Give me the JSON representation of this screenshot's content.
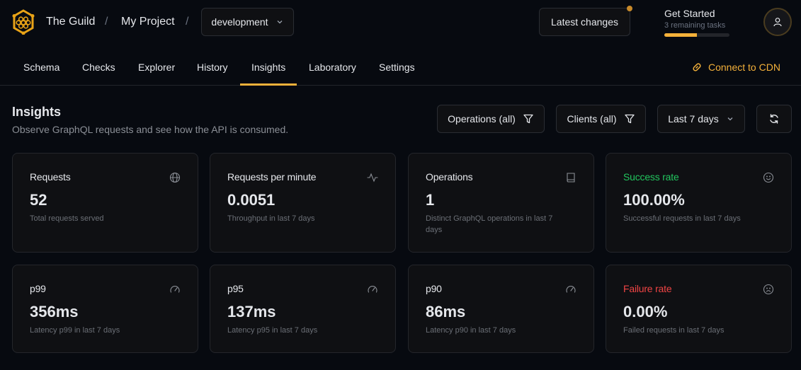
{
  "header": {
    "org": "The Guild",
    "project": "My Project",
    "target": "development",
    "latest_changes": "Latest changes",
    "get_started": {
      "title": "Get Started",
      "subtitle": "3 remaining tasks",
      "progress": 0.5
    }
  },
  "tabs": [
    {
      "label": "Schema"
    },
    {
      "label": "Checks"
    },
    {
      "label": "Explorer"
    },
    {
      "label": "History"
    },
    {
      "label": "Insights",
      "active": true
    },
    {
      "label": "Laboratory"
    },
    {
      "label": "Settings"
    }
  ],
  "cdn": "Connect to CDN",
  "page": {
    "title": "Insights",
    "subtitle": "Observe GraphQL requests and see how the API is consumed."
  },
  "filters": {
    "operations": "Operations (all)",
    "clients": "Clients (all)",
    "range": "Last 7 days"
  },
  "cards": [
    {
      "title": "Requests",
      "value": "52",
      "desc": "Total requests served",
      "icon": "globe-icon"
    },
    {
      "title": "Requests per minute",
      "value": "0.0051",
      "desc": "Throughput in last 7 days",
      "icon": "activity-icon"
    },
    {
      "title": "Operations",
      "value": "1",
      "desc": "Distinct GraphQL operations in last 7 days",
      "icon": "book-icon"
    },
    {
      "title": "Success rate",
      "value": "100.00%",
      "desc": "Successful requests in last 7 days",
      "icon": "smile-icon",
      "color": "#22c55e"
    },
    {
      "title": "p99",
      "value": "356ms",
      "desc": "Latency p99 in last 7 days",
      "icon": "gauge-icon"
    },
    {
      "title": "p95",
      "value": "137ms",
      "desc": "Latency p95 in last 7 days",
      "icon": "gauge-icon"
    },
    {
      "title": "p90",
      "value": "86ms",
      "desc": "Latency p90 in last 7 days",
      "icon": "gauge-icon"
    },
    {
      "title": "Failure rate",
      "value": "0.00%",
      "desc": "Failed requests in last 7 days",
      "icon": "frown-icon",
      "color": "#ef4444"
    }
  ],
  "colors": {
    "accent": "#f4b13a",
    "success": "#22c55e",
    "failure": "#ef4444"
  }
}
